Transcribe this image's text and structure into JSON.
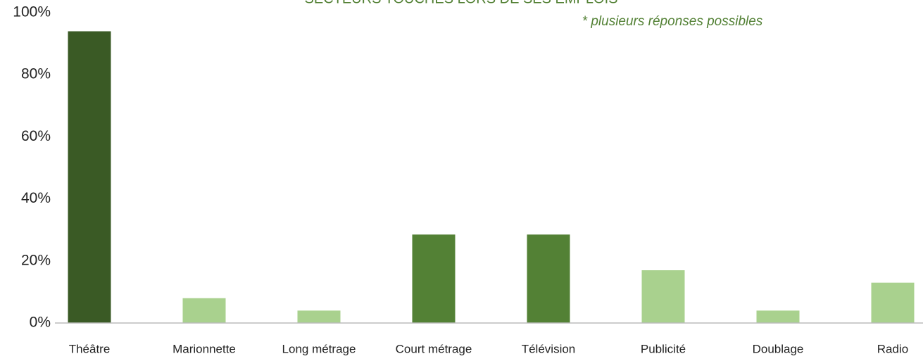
{
  "chart_data": {
    "type": "bar",
    "title": "SECTEURS TOUCHÉS LORS DE SES EMPLOIS",
    "subtitle": "* plusieurs réponses possibles",
    "categories": [
      "Théâtre",
      "Marionnette",
      "Long métrage",
      "Court métrage",
      "Télévision",
      "Publicité",
      "Doublage",
      "Radio"
    ],
    "values": [
      94,
      8,
      4,
      28.5,
      28.5,
      17,
      4,
      13
    ],
    "colors": [
      "#3a5a25",
      "#a9d18e",
      "#a9d18e",
      "#538135",
      "#538135",
      "#a9d18e",
      "#a9d18e",
      "#a9d18e"
    ],
    "ylim": [
      0,
      100
    ],
    "yticks": [
      {
        "value": 0,
        "label": "0%"
      },
      {
        "value": 20,
        "label": "20%"
      },
      {
        "value": 40,
        "label": "40%"
      },
      {
        "value": 60,
        "label": "60%"
      },
      {
        "value": 80,
        "label": "80%"
      },
      {
        "value": 100,
        "label": "100%"
      }
    ],
    "grid": false
  }
}
